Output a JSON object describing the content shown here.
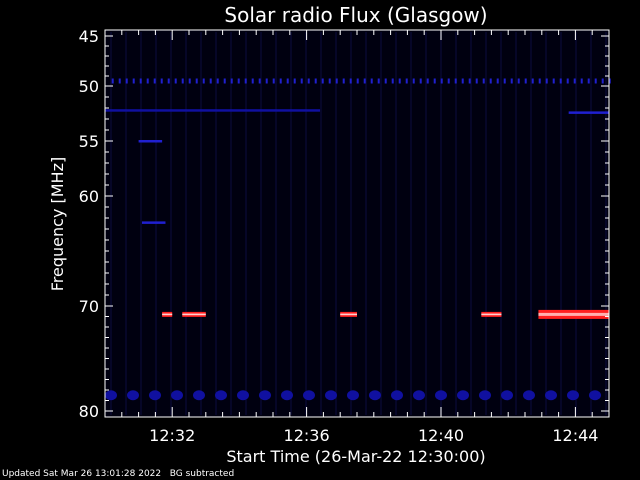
{
  "chart_data": {
    "type": "heatmap",
    "title": "Solar radio Flux (Glasgow)",
    "ylabel": "Frequency [MHz]",
    "xlabel": "Start Time (26-Mar-22 12:30:00)",
    "xlim_minutes": [
      0,
      15
    ],
    "ylim_mhz": [
      45,
      80
    ],
    "y_reversed": true,
    "y_ticks": [
      {
        "value": 45,
        "label": "45"
      },
      {
        "value": 50,
        "label": "50"
      },
      {
        "value": 55,
        "label": "55"
      },
      {
        "value": 60,
        "label": "60"
      },
      {
        "value": 70,
        "label": "70"
      },
      {
        "value": 80,
        "label": "80"
      }
    ],
    "x_ticks": [
      {
        "value": 2,
        "label": "12:32"
      },
      {
        "value": 6,
        "label": "12:36"
      },
      {
        "value": 10,
        "label": "12:40"
      },
      {
        "value": 14,
        "label": "12:44"
      }
    ],
    "colors": {
      "background": "#000010",
      "weak": "#1010a0",
      "medium": "#2020d0",
      "strong": "#ff2020",
      "peak": "#ffb0b0"
    },
    "features": [
      {
        "name": "dashed line 49.5 MHz",
        "kind": "dashed",
        "freq": 49.5,
        "x_start": 0.2,
        "x_end": 15.0,
        "level": "medium"
      },
      {
        "name": "line 52 MHz",
        "kind": "line",
        "freq": 52.2,
        "x_start": 0.0,
        "x_end": 6.4,
        "level": "weak"
      },
      {
        "name": "line 52.5 MHz right",
        "kind": "line",
        "freq": 52.4,
        "x_start": 13.8,
        "x_end": 15.0,
        "level": "medium"
      },
      {
        "name": "line 55 MHz",
        "kind": "line",
        "freq": 55.0,
        "x_start": 1.0,
        "x_end": 1.7,
        "level": "medium"
      },
      {
        "name": "line 62 MHz",
        "kind": "line",
        "freq": 62.4,
        "x_start": 1.1,
        "x_end": 1.8,
        "level": "medium"
      },
      {
        "name": "burst 71 MHz a",
        "kind": "burst",
        "freq": 70.8,
        "x_start": 1.7,
        "x_end": 2.0,
        "level": "strong"
      },
      {
        "name": "burst 71 MHz b",
        "kind": "burst",
        "freq": 70.8,
        "x_start": 2.3,
        "x_end": 3.0,
        "level": "strong"
      },
      {
        "name": "burst 71 MHz c",
        "kind": "burst",
        "freq": 70.8,
        "x_start": 7.0,
        "x_end": 7.5,
        "level": "strong"
      },
      {
        "name": "burst 71 MHz d",
        "kind": "burst",
        "freq": 70.8,
        "x_start": 11.2,
        "x_end": 11.8,
        "level": "strong"
      },
      {
        "name": "band 71 MHz",
        "kind": "band",
        "freq": 70.8,
        "x_start": 12.9,
        "x_end": 15.0,
        "level": "peak"
      },
      {
        "name": "blobs 78.5 MHz",
        "kind": "blobs",
        "freq": 78.5,
        "x_start": 0.0,
        "x_end": 15.0,
        "level": "weak"
      }
    ]
  },
  "footer": {
    "updated": "Updated Sat Mar 26 13:01:28 2022",
    "note": "BG subtracted"
  }
}
